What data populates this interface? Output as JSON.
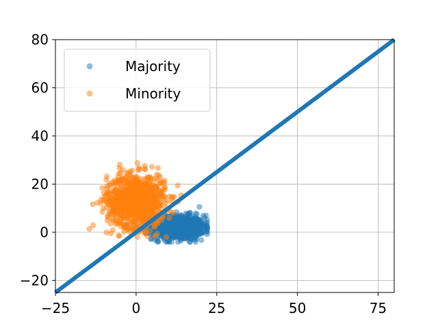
{
  "chart_data": {
    "type": "scatter",
    "xlim": [
      -25,
      80
    ],
    "ylim": [
      -25,
      80
    ],
    "x_ticks": [
      -25,
      0,
      25,
      50,
      75
    ],
    "y_ticks": [
      -20,
      0,
      20,
      40,
      60,
      80
    ],
    "x_tick_labels": [
      "−25",
      "0",
      "25",
      "50",
      "75"
    ],
    "y_tick_labels": [
      "−20",
      "0",
      "20",
      "40",
      "60",
      "80"
    ],
    "grid": true,
    "legend_position": "top-left",
    "series": [
      {
        "name": "Majority",
        "color": "#1f77b4",
        "alpha": 0.5,
        "cluster": {
          "mean": [
            13,
            2
          ],
          "std": [
            4,
            2.5
          ],
          "x_range": [
            -5,
            22
          ],
          "y_range": [
            -4,
            11
          ],
          "count": 1000
        }
      },
      {
        "name": "Minority",
        "color": "#ff7f0e",
        "alpha": 0.5,
        "cluster": {
          "mean": [
            0,
            13
          ],
          "std": [
            4.5,
            5.5
          ],
          "x_range": [
            -15,
            14
          ],
          "y_range": [
            -2,
            32
          ],
          "count": 1000
        }
      }
    ],
    "reference_line": {
      "slope": 1,
      "intercept": 0,
      "color": "#1f77b4",
      "style": "solid"
    }
  }
}
